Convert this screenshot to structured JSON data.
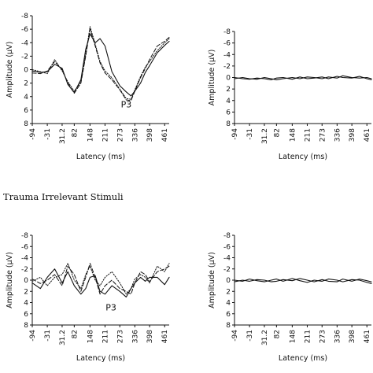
{
  "section_title": "Trauma Irrelevant Stimuli",
  "chart_data": [
    {
      "type": "line",
      "xlabel": "Latency (ms)",
      "ylabel": "Amplitude (µV)",
      "ylim": [
        8,
        -8
      ],
      "y_ticks": [
        "-8",
        "-6",
        "-4",
        "-2",
        "0",
        "2",
        "4",
        "6",
        "8"
      ],
      "x_ticks": [
        "-94",
        "-31",
        "31.2",
        "82",
        "148",
        "211",
        "273",
        "336",
        "398",
        "461"
      ],
      "annotation": "P3",
      "annotation_at": {
        "x": 300,
        "y": 5.6
      },
      "series": [
        {
          "style": "solid",
          "x": [
            -94,
            -60,
            -31,
            0,
            31.2,
            55,
            82,
            110,
            130,
            148,
            170,
            190,
            211,
            240,
            273,
            300,
            320,
            336,
            360,
            380,
            398,
            430,
            461,
            480
          ],
          "y": [
            0.2,
            0.4,
            0.3,
            -0.8,
            -0.2,
            2.2,
            3.4,
            1.5,
            -3.0,
            -5.3,
            -4.0,
            -4.6,
            -3.5,
            0.3,
            2.4,
            3.3,
            3.9,
            3.2,
            2.0,
            0.4,
            -0.6,
            -2.5,
            -3.6,
            -4.2
          ]
        },
        {
          "style": "dashed",
          "x": [
            -94,
            -60,
            -31,
            0,
            31.2,
            55,
            82,
            110,
            130,
            148,
            170,
            190,
            211,
            240,
            273,
            300,
            320,
            336,
            360,
            380,
            398,
            430,
            461,
            480
          ],
          "y": [
            0.5,
            0.6,
            0.2,
            -1.2,
            0.0,
            2.0,
            3.5,
            2.0,
            -2.0,
            -6.0,
            -3.5,
            -1.0,
            0.5,
            1.5,
            3.0,
            4.5,
            4.6,
            3.2,
            1.2,
            -0.2,
            -1.5,
            -3.5,
            -4.2,
            -4.8
          ]
        },
        {
          "style": "dotted",
          "x": [
            -94,
            -60,
            -31,
            0,
            31.2,
            55,
            82,
            110,
            130,
            148,
            170,
            190,
            211,
            240,
            273,
            300,
            320,
            336,
            360,
            380,
            398,
            430,
            461,
            480
          ],
          "y": [
            0.0,
            0.3,
            0.6,
            -1.5,
            0.2,
            1.8,
            3.2,
            1.8,
            -2.2,
            -6.4,
            -3.8,
            -1.2,
            0.2,
            1.2,
            2.9,
            4.3,
            4.4,
            3.0,
            1.0,
            -0.4,
            -1.2,
            -2.8,
            -4.0,
            -4.6
          ]
        }
      ]
    },
    {
      "type": "line",
      "xlabel": "Latency (ms)",
      "ylabel": "Amplitude (µV)",
      "ylim": [
        8,
        -8
      ],
      "y_ticks": [
        "-8",
        "-6",
        "-4",
        "-2",
        "0",
        "2",
        "4",
        "6",
        "8"
      ],
      "x_ticks": [
        "-94",
        "-31",
        "31.2",
        "82",
        "148",
        "211",
        "273",
        "336",
        "398",
        "461"
      ],
      "series": [
        {
          "style": "solid",
          "x": [
            -94,
            -60,
            -31,
            0,
            31.2,
            60,
            82,
            110,
            148,
            180,
            211,
            240,
            273,
            300,
            336,
            360,
            398,
            430,
            461,
            480
          ],
          "y": [
            0.0,
            0.2,
            0.3,
            0.1,
            0.2,
            0.4,
            0.1,
            0.0,
            0.3,
            -0.1,
            0.2,
            0.1,
            -0.1,
            0.2,
            -0.2,
            0.0,
            0.1,
            -0.2,
            0.2,
            0.4
          ]
        },
        {
          "style": "solid",
          "x": [
            -94,
            -60,
            -31,
            0,
            31.2,
            60,
            82,
            110,
            148,
            180,
            211,
            240,
            273,
            300,
            336,
            360,
            398,
            430,
            461,
            480
          ],
          "y": [
            0.2,
            0.0,
            0.2,
            0.3,
            0.0,
            0.2,
            0.4,
            0.2,
            0.0,
            0.2,
            -0.1,
            0.0,
            0.2,
            -0.1,
            0.1,
            -0.3,
            0.0,
            0.1,
            0.0,
            0.2
          ]
        }
      ]
    },
    {
      "type": "line",
      "xlabel": "Latency (ms)",
      "ylabel": "Amplitude (µV)",
      "ylim": [
        8,
        -8
      ],
      "y_ticks": [
        "-8",
        "-6",
        "-4",
        "-2",
        "0",
        "2",
        "4",
        "6",
        "8"
      ],
      "x_ticks": [
        "-94",
        "-31",
        "31.2",
        "82",
        "148",
        "211",
        "273",
        "336",
        "398",
        "461"
      ],
      "annotation": "P3",
      "annotation_at": {
        "x": 236,
        "y": 5.4
      },
      "series": [
        {
          "style": "solid",
          "x": [
            -94,
            -60,
            -31,
            0,
            31.2,
            55,
            82,
            110,
            130,
            148,
            170,
            190,
            211,
            240,
            273,
            300,
            320,
            336,
            360,
            380,
            398,
            430,
            461,
            480
          ],
          "y": [
            0.5,
            1.5,
            -0.5,
            -2.0,
            0.5,
            -1.5,
            1.0,
            2.5,
            1.5,
            -0.5,
            -0.8,
            2.0,
            2.5,
            1.0,
            2.0,
            3.0,
            1.5,
            0.5,
            -0.5,
            0.2,
            -0.5,
            -0.5,
            0.8,
            -0.5
          ]
        },
        {
          "style": "dashed",
          "x": [
            -94,
            -60,
            -31,
            0,
            31.2,
            55,
            82,
            110,
            130,
            148,
            170,
            190,
            211,
            240,
            273,
            300,
            320,
            336,
            360,
            380,
            398,
            430,
            461,
            480
          ],
          "y": [
            -0.2,
            0.6,
            0.0,
            -1.0,
            1.0,
            -2.5,
            -1.0,
            2.0,
            -0.5,
            -3.0,
            -0.5,
            2.5,
            1.0,
            0.0,
            1.5,
            2.0,
            2.5,
            0.5,
            -1.5,
            -1.0,
            0.3,
            -1.5,
            -2.0,
            -2.5
          ]
        },
        {
          "style": "dotted",
          "x": [
            -94,
            -60,
            -31,
            0,
            31.2,
            55,
            82,
            110,
            130,
            148,
            170,
            190,
            211,
            240,
            273,
            300,
            320,
            336,
            360,
            380,
            398,
            430,
            461,
            480
          ],
          "y": [
            0.2,
            -0.5,
            1.0,
            -0.5,
            -1.0,
            -3.0,
            0.0,
            1.5,
            -1.0,
            -2.5,
            0.0,
            1.0,
            -0.5,
            -1.5,
            0.5,
            2.5,
            1.5,
            -0.2,
            -1.0,
            -0.5,
            0.5,
            -2.5,
            -1.5,
            -3.0
          ]
        }
      ]
    },
    {
      "type": "line",
      "xlabel": "Latency (ms)",
      "ylabel": "Amplitude (µV)",
      "ylim": [
        8,
        -8
      ],
      "y_ticks": [
        "-8",
        "-6",
        "-4",
        "-2",
        "0",
        "2",
        "4",
        "6",
        "8"
      ],
      "x_ticks": [
        "-94",
        "-31",
        "31.2",
        "82",
        "148",
        "211",
        "273",
        "336",
        "398",
        "461"
      ],
      "series": [
        {
          "style": "solid",
          "x": [
            -94,
            -60,
            -31,
            0,
            31.2,
            60,
            82,
            110,
            148,
            180,
            211,
            240,
            273,
            300,
            336,
            360,
            398,
            430,
            461,
            480
          ],
          "y": [
            0.0,
            0.2,
            -0.2,
            0.1,
            0.3,
            0.0,
            -0.2,
            0.2,
            -0.3,
            0.1,
            0.4,
            0.0,
            0.2,
            -0.2,
            0.0,
            0.3,
            -0.1,
            0.0,
            0.4,
            0.6
          ]
        },
        {
          "style": "solid",
          "x": [
            -94,
            -60,
            -31,
            0,
            31.2,
            60,
            82,
            110,
            148,
            180,
            211,
            240,
            273,
            300,
            336,
            360,
            398,
            430,
            461,
            480
          ],
          "y": [
            0.3,
            0.0,
            0.2,
            -0.1,
            0.0,
            0.3,
            0.2,
            -0.1,
            0.1,
            -0.3,
            0.0,
            0.3,
            -0.1,
            0.2,
            0.3,
            -0.2,
            0.2,
            -0.2,
            0.1,
            0.3
          ]
        }
      ]
    }
  ]
}
